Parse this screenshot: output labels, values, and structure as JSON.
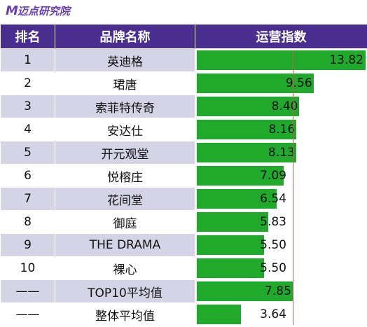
{
  "header": {
    "logo_mark": "M",
    "logo_text": "迈点研究院"
  },
  "table": {
    "columns": [
      "排名",
      "品牌名称",
      "运营指数"
    ]
  },
  "chart_data": {
    "type": "bar",
    "orientation": "horizontal",
    "ranks": [
      "1",
      "2",
      "3",
      "4",
      "5",
      "6",
      "7",
      "8",
      "9",
      "10",
      "——",
      "——"
    ],
    "categories": [
      "英迪格",
      "珺唐",
      "索菲特传奇",
      "安达仕",
      "开元观堂",
      "悦榕庄",
      "花间堂",
      "御庭",
      "THE DRAMA",
      "裸心",
      "TOP10平均值",
      "整体平均值"
    ],
    "values": [
      13.82,
      9.56,
      8.4,
      8.16,
      8.13,
      7.09,
      6.54,
      5.83,
      5.5,
      5.5,
      7.85,
      3.64
    ],
    "labels": [
      "13.82",
      "9.56",
      "8.40",
      "8.16",
      "8.13",
      "7.09",
      "6.54",
      "5.83",
      "5.50",
      "5.50",
      "7.85",
      "3.64"
    ],
    "reference_line_value": 7.85,
    "xlim": [
      0,
      13.82
    ],
    "colors": {
      "bar": "#1faa2b",
      "header": "#4a2e8f",
      "row_stripe": "#d4d4e6",
      "reference_line": "#e05050"
    }
  }
}
